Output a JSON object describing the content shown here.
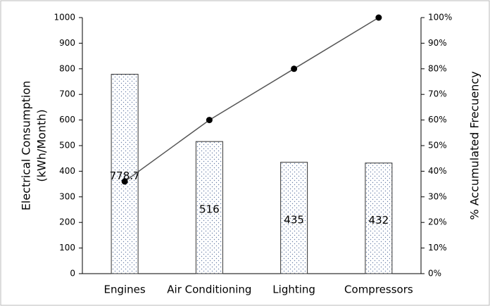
{
  "chart_data": {
    "type": "pareto",
    "ylabel": [
      "Electrical Consumption",
      "(kWh/Month)"
    ],
    "y2label": "% Accumulated Frecuency",
    "categories": [
      "Engines",
      "Air Conditioning",
      "Lighting",
      "Compressors"
    ],
    "values": [
      778.7,
      516,
      435,
      432
    ],
    "value_labels": [
      "778.7",
      "516",
      "435",
      "432"
    ],
    "color": "#ffffff",
    "cumulative": {
      "values": [
        36,
        60,
        80,
        100
      ],
      "axis": "y2",
      "color": "#555555",
      "marker_color": "#000000"
    },
    "ylim": [
      0,
      1000
    ],
    "yticks": [
      0,
      100,
      200,
      300,
      400,
      500,
      600,
      700,
      800,
      900,
      1000
    ],
    "y2lim": [
      0,
      100
    ],
    "y2ticks": [
      {
        "value": 0,
        "label": "0%"
      },
      {
        "value": 10,
        "label": "10%"
      },
      {
        "value": 20,
        "label": "20%"
      },
      {
        "value": 30,
        "label": "30%"
      },
      {
        "value": 40,
        "label": "40%"
      },
      {
        "value": 50,
        "label": "50%"
      },
      {
        "value": 60,
        "label": "60%"
      },
      {
        "value": 70,
        "label": "70%"
      },
      {
        "value": 80,
        "label": "80%"
      },
      {
        "value": 90,
        "label": "90%"
      },
      {
        "value": 100,
        "label": "100%"
      }
    ],
    "grid": false
  }
}
